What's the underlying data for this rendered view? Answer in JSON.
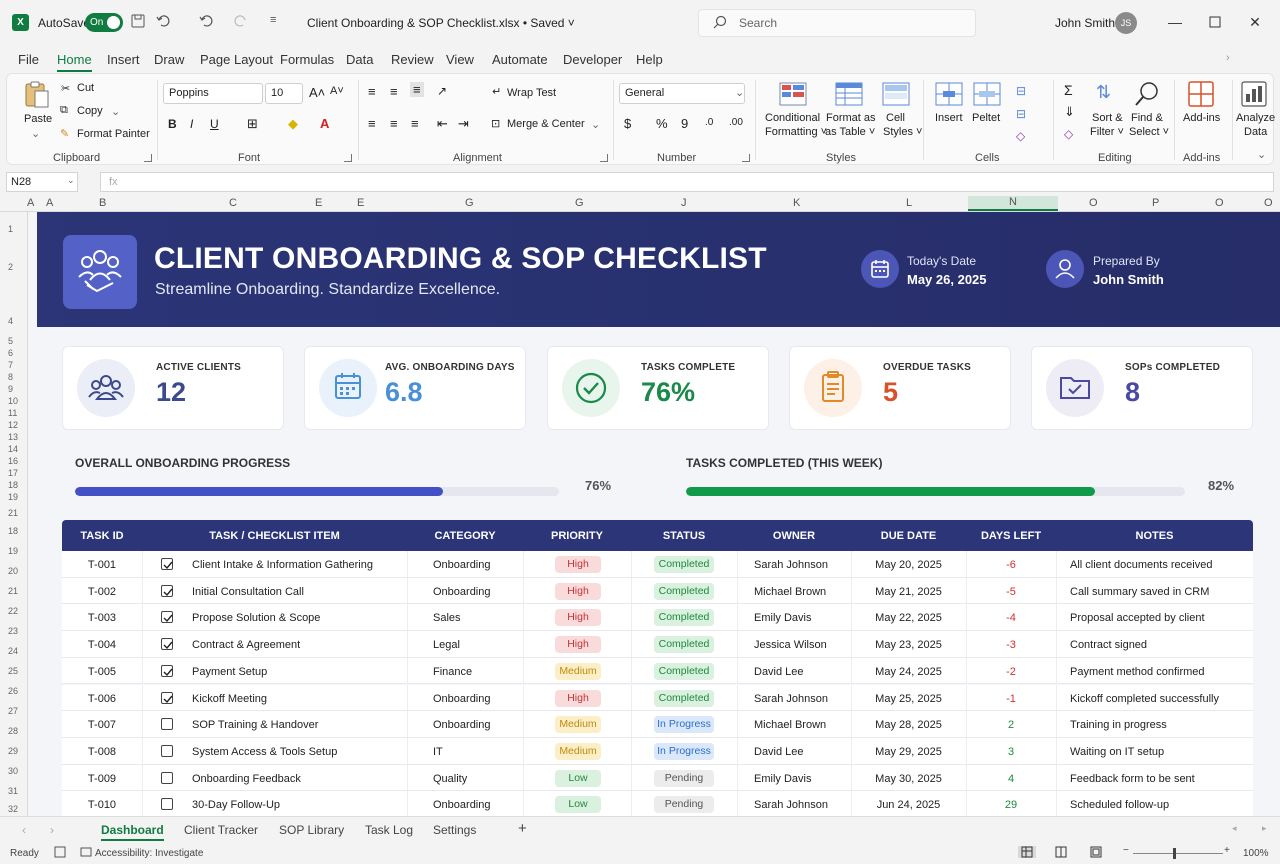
{
  "titlebar": {
    "autosave_label": "AutoSave",
    "autosave_state": "On",
    "doc_title": "Client Onboarding & SOP Checklist.xlsx • Saved ˅",
    "search_placeholder": "Search",
    "user_name": "John Smith",
    "user_initials": "JS"
  },
  "menu": [
    "File",
    "Home",
    "Insert",
    "Draw",
    "Page Layout",
    "Formulas",
    "Data",
    "Review",
    "View",
    "Automate",
    "Developer",
    "Help"
  ],
  "ribbon": {
    "paste": "Paste",
    "cut": "Cut",
    "copy": "Copy",
    "format_painter": "Format Painter",
    "clipboard": "Clipboard",
    "font_name": "Poppins",
    "font_size": "10",
    "font_group": "Font",
    "wrap_text": "Wrap Test",
    "merge_center": "Merge & Center",
    "alignment": "Alignment",
    "number_format": "General",
    "number": "Number",
    "conditional_1": "Conditional",
    "conditional_2": "Formatting ˅",
    "format_table_1": "Format as",
    "format_table_2": "as Table ˅",
    "cell_styles_1": "Cell",
    "cell_styles_2": "Styles ˅",
    "styles": "Styles",
    "insert": "Insert",
    "delete": "Peltet",
    "cells": "Cells",
    "sort_filter_1": "Sort &",
    "sort_filter_2": "Filter ˅",
    "find_select_1": "Find &",
    "find_select_2": "Select ˅",
    "editing": "Editing",
    "addins": "Add-ins",
    "addins_group": "Add-ins",
    "analyze_1": "Analyze",
    "analyze_2": "Data"
  },
  "formula_bar": {
    "name_box": "N28",
    "fx": "fx"
  },
  "columns": [
    "A",
    "A",
    "B",
    "C",
    "E",
    "E",
    "G",
    "G",
    "J",
    "K",
    "L",
    "N",
    "O",
    "P",
    "O",
    "O"
  ],
  "banner": {
    "title": "CLIENT ONBOARDING & SOP CHECKLIST",
    "subtitle": "Streamline Onboarding. Standardize Excellence.",
    "date_label": "Today's Date",
    "date_value": "May 26, 2025",
    "prepared_label": "Prepared By",
    "prepared_value": "John Smith"
  },
  "kpis": [
    {
      "label": "ACTIVE CLIENTS",
      "value": "12",
      "color": "#3a4a8c",
      "icon": "users-icon"
    },
    {
      "label": "AVG. ONBOARDING DAYS",
      "value": "6.8",
      "color": "#4a90d9",
      "icon": "calendar-icon"
    },
    {
      "label": "TASKS COMPLETE",
      "value": "76%",
      "color": "#1a8a4a",
      "icon": "check-circle-icon"
    },
    {
      "label": "OVERDUE TASKS",
      "value": "5",
      "color": "#d9502a",
      "icon": "clipboard-icon"
    },
    {
      "label": "SOPs COMPLETED",
      "value": "8",
      "color": "#4b4aa0",
      "icon": "folder-check-icon"
    }
  ],
  "progress": {
    "overall_label": "OVERALL ONBOARDING PROGRESS",
    "overall_value": 0.76,
    "overall_text": "76%",
    "weekly_label": "TASKS COMPLETED (THIS WEEK)",
    "weekly_value": 0.82,
    "weekly_text": "82%"
  },
  "table": {
    "headers": [
      "TASK ID",
      "TASK / CHECKLIST ITEM",
      "CATEGORY",
      "PRIORITY",
      "STATUS",
      "OWNER",
      "DUE DATE",
      "DAYS LEFT",
      "NOTES"
    ],
    "rows": [
      {
        "id": "T-001",
        "checked": true,
        "task": "Client Intake & Information Gathering",
        "category": "Onboarding",
        "priority": "High",
        "status": "Completed",
        "owner": "Sarah Johnson",
        "due": "May 20, 2025",
        "days": "-6",
        "notes": "All client documents received"
      },
      {
        "id": "T-002",
        "checked": true,
        "task": "Initial Consultation Call",
        "category": "Onboarding",
        "priority": "High",
        "status": "Completed",
        "owner": "Michael Brown",
        "due": "May 21, 2025",
        "days": "-5",
        "notes": "Call summary saved in CRM"
      },
      {
        "id": "T-003",
        "checked": true,
        "task": "Propose Solution & Scope",
        "category": "Sales",
        "priority": "High",
        "status": "Completed",
        "owner": "Emily Davis",
        "due": "May 22, 2025",
        "days": "-4",
        "notes": "Proposal accepted by client"
      },
      {
        "id": "T-004",
        "checked": true,
        "task": "Contract & Agreement",
        "category": "Legal",
        "priority": "High",
        "status": "Completed",
        "owner": "Jessica Wilson",
        "due": "May 23, 2025",
        "days": "-3",
        "notes": "Contract signed"
      },
      {
        "id": "T-005",
        "checked": true,
        "task": "Payment Setup",
        "category": "Finance",
        "priority": "Medium",
        "status": "Completed",
        "owner": "David Lee",
        "due": "May 24, 2025",
        "days": "-2",
        "notes": "Payment method confirmed"
      },
      {
        "id": "T-006",
        "checked": true,
        "task": "Kickoff Meeting",
        "category": "Onboarding",
        "priority": "High",
        "status": "Completed",
        "owner": "Sarah Johnson",
        "due": "May 25, 2025",
        "days": "-1",
        "notes": "Kickoff completed successfully"
      },
      {
        "id": "T-007",
        "checked": false,
        "task": "SOP Training & Handover",
        "category": "Onboarding",
        "priority": "Medium",
        "status": "In Progress",
        "owner": "Michael Brown",
        "due": "May 28, 2025",
        "days": "2",
        "notes": "Training in progress"
      },
      {
        "id": "T-008",
        "checked": false,
        "task": "System Access & Tools Setup",
        "category": "IT",
        "priority": "Medium",
        "status": "In Progress",
        "owner": "David Lee",
        "due": "May 29, 2025",
        "days": "3",
        "notes": "Waiting on IT setup"
      },
      {
        "id": "T-009",
        "checked": false,
        "task": "Onboarding Feedback",
        "category": "Quality",
        "priority": "Low",
        "status": "Pending",
        "owner": "Emily Davis",
        "due": "May 30, 2025",
        "days": "4",
        "notes": "Feedback form to be sent"
      },
      {
        "id": "T-010",
        "checked": false,
        "task": "30-Day Follow-Up",
        "category": "Onboarding",
        "priority": "Low",
        "status": "Pending",
        "owner": "Sarah Johnson",
        "due": "Jun 24, 2025",
        "days": "29",
        "notes": "Scheduled follow-up"
      }
    ]
  },
  "sheet_tabs": [
    "Dashboard",
    "Client Tracker",
    "SOP Library",
    "Task Log",
    "Settings"
  ],
  "status": {
    "ready": "Ready",
    "accessibility": "Accessibility: Investigate",
    "zoom": "100%"
  }
}
